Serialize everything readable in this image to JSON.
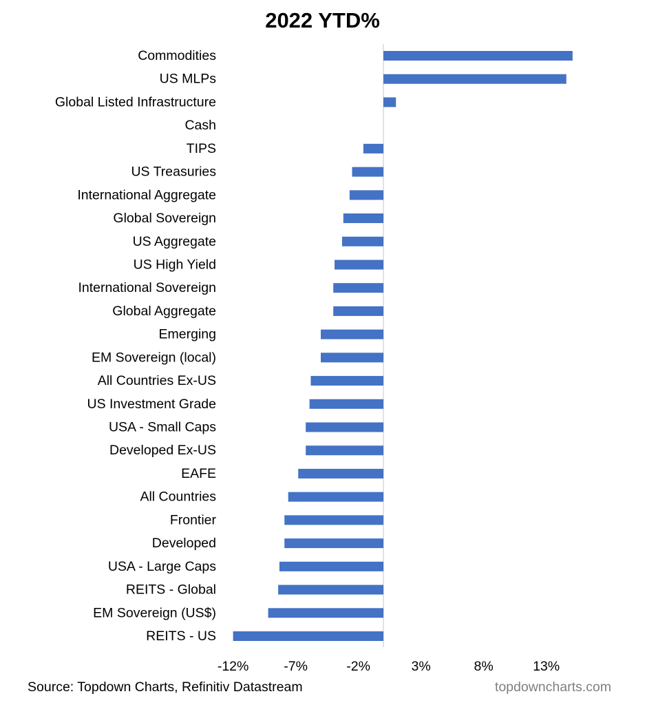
{
  "chart_data": {
    "type": "bar",
    "orientation": "horizontal",
    "title": "2022 YTD%",
    "xlabel": "",
    "ylabel": "",
    "categories": [
      "Commodities",
      "US MLPs",
      "Global Listed Infrastructure",
      "Cash",
      "TIPS",
      "US Treasuries",
      "International Aggregate",
      "Global Sovereign",
      "US Aggregate",
      "US High Yield",
      "International Sovereign",
      "Global Aggregate",
      "Emerging",
      "EM Sovereign (local)",
      "All Countries Ex-US",
      "US Investment Grade",
      "USA - Small Caps",
      "Developed Ex-US",
      "EAFE",
      "All Countries",
      "Frontier",
      "Developed",
      "USA - Large Caps",
      "REITS - Global",
      "EM Sovereign (US$)",
      "REITS - US"
    ],
    "values": [
      15.1,
      14.6,
      1.0,
      0.0,
      -1.6,
      -2.5,
      -2.7,
      -3.2,
      -3.3,
      -3.9,
      -4.0,
      -4.0,
      -5.0,
      -5.0,
      -5.8,
      -5.9,
      -6.2,
      -6.2,
      -6.8,
      -7.6,
      -7.9,
      -7.9,
      -8.3,
      -8.4,
      -9.2,
      -12.0
    ],
    "xlim": [
      -12.5,
      16.5
    ],
    "ticks": [
      -12,
      -7,
      -2,
      3,
      8,
      13
    ],
    "tick_labels": [
      "-12%",
      "-7%",
      "-2%",
      "3%",
      "8%",
      "13%"
    ],
    "bar_color": "#4472C4",
    "zero_line_color": "#D9D9D9",
    "grid": false,
    "legend": "none"
  },
  "footer": {
    "source": "Source: Topdown Charts, Refinitiv Datastream",
    "watermark": "topdowncharts.com"
  }
}
